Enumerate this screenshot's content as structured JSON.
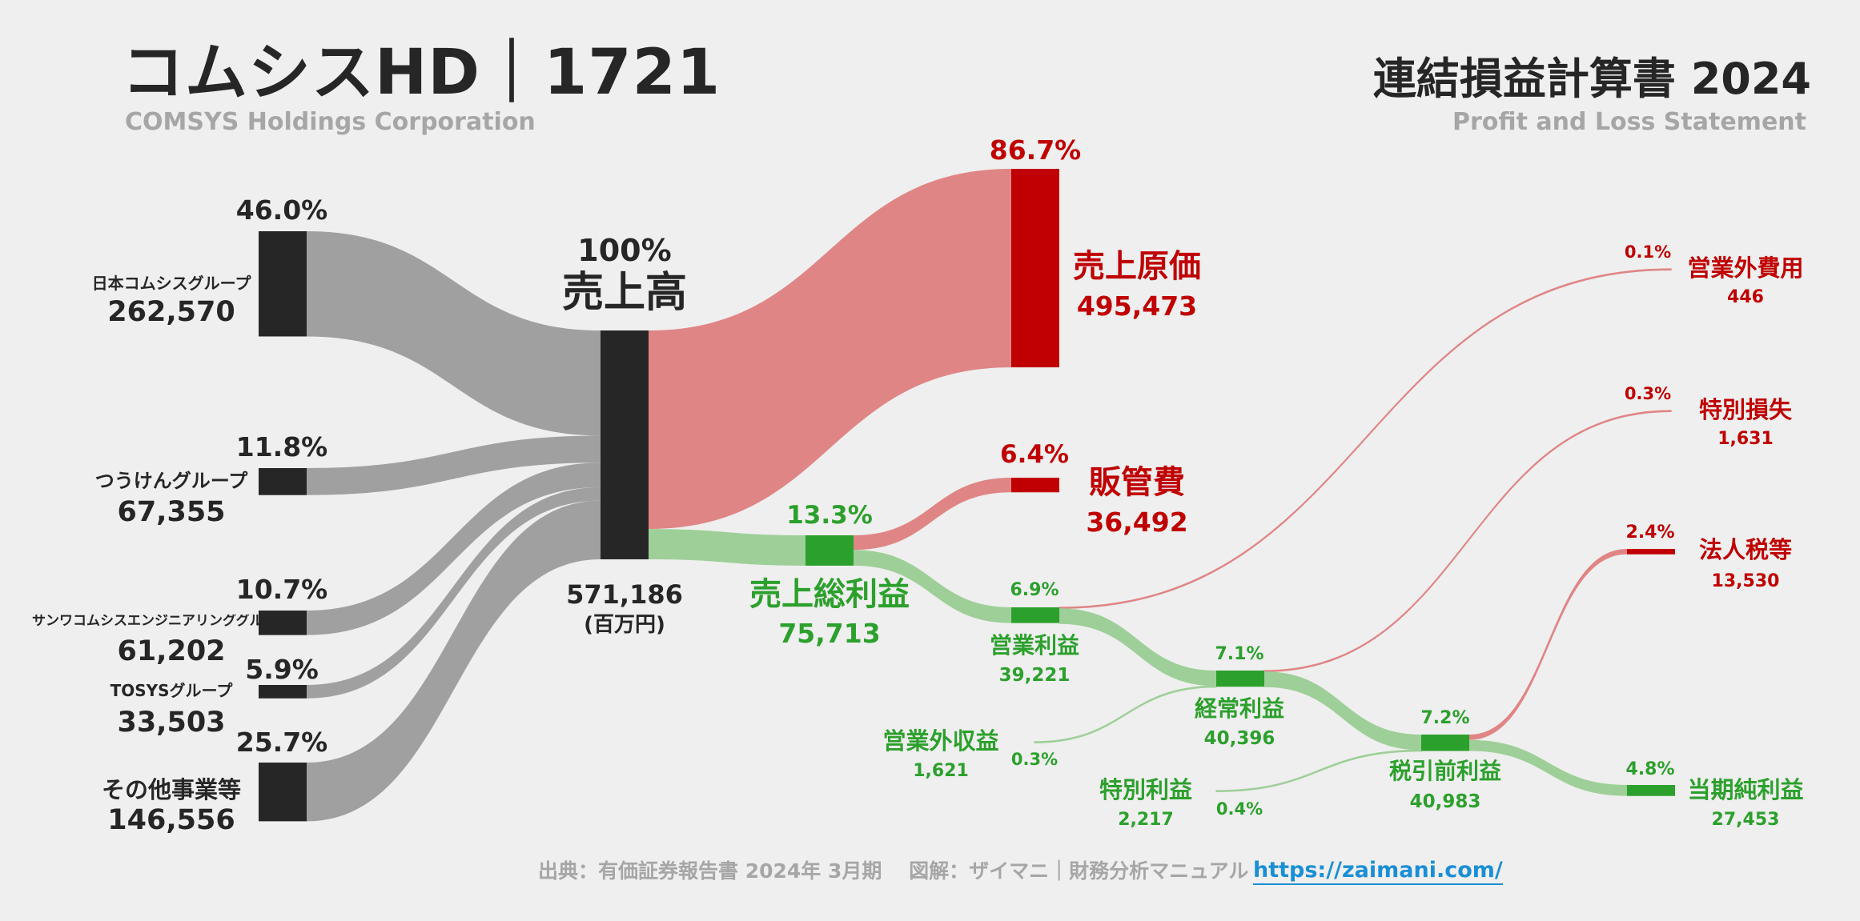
{
  "header": {
    "company": "コムシスHD｜1721",
    "company_en": "COMSYS Holdings Corporation",
    "statement": "連結損益計算書 2024",
    "statement_en": "Profit and Loss Statement"
  },
  "footer": {
    "source": "出典：有価証券報告書 2024年 3月期　 図解：ザイマニ｜財務分析マニュアル",
    "url": "https://zaimani.com/"
  },
  "colors": {
    "dark": "#262626",
    "gray_flow": "#a0a0a0",
    "red": "#c00000",
    "red_flow": "#e08585",
    "green": "#2ca02c",
    "green_flow": "#9ecf98",
    "background": "#efefef"
  },
  "chart_data": {
    "type": "sankey",
    "title": "連結損益計算書 2024",
    "unit": "(百万円)",
    "nodes": [
      {
        "id": "nihon",
        "label": "日本コムシスグループ",
        "value": 262570,
        "display_value": "262,570",
        "pct": "46.0%",
        "color": "dark"
      },
      {
        "id": "tsuken",
        "label": "つうけんグループ",
        "value": 67355,
        "display_value": "67,355",
        "pct": "11.8%",
        "color": "dark"
      },
      {
        "id": "sanwa",
        "label": "サンワコムシスエンジニアリンググループ",
        "value": 61202,
        "display_value": "61,202",
        "pct": "10.7%",
        "color": "dark"
      },
      {
        "id": "tosys",
        "label": "TOSYSグループ",
        "value": 33503,
        "display_value": "33,503",
        "pct": "5.9%",
        "color": "dark"
      },
      {
        "id": "other",
        "label": "その他事業等",
        "value": 146556,
        "display_value": "146,556",
        "pct": "25.7%",
        "color": "dark"
      },
      {
        "id": "revenue",
        "label": "売上高",
        "value": 571186,
        "display_value": "571,186",
        "pct": "100%",
        "color": "dark"
      },
      {
        "id": "cogs",
        "label": "売上原価",
        "value": 495473,
        "display_value": "495,473",
        "pct": "86.7%",
        "color": "red"
      },
      {
        "id": "gross",
        "label": "売上総利益",
        "value": 75713,
        "display_value": "75,713",
        "pct": "13.3%",
        "color": "green"
      },
      {
        "id": "sga",
        "label": "販管費",
        "value": 36492,
        "display_value": "36,492",
        "pct": "6.4%",
        "color": "red"
      },
      {
        "id": "op",
        "label": "営業利益",
        "value": 39221,
        "display_value": "39,221",
        "pct": "6.9%",
        "color": "green"
      },
      {
        "id": "nonop_exp",
        "label": "営業外費用",
        "value": 446,
        "display_value": "446",
        "pct": "0.1%",
        "color": "red"
      },
      {
        "id": "nonop_inc",
        "label": "営業外収益",
        "value": 1621,
        "display_value": "1,621",
        "pct": "0.3%",
        "color": "green"
      },
      {
        "id": "ordinary",
        "label": "経常利益",
        "value": 40396,
        "display_value": "40,396",
        "pct": "7.1%",
        "color": "green"
      },
      {
        "id": "sp_loss",
        "label": "特別損失",
        "value": 1631,
        "display_value": "1,631",
        "pct": "0.3%",
        "color": "red"
      },
      {
        "id": "sp_gain",
        "label": "特別利益",
        "value": 2217,
        "display_value": "2,217",
        "pct": "0.4%",
        "color": "green"
      },
      {
        "id": "pretax",
        "label": "税引前利益",
        "value": 40983,
        "display_value": "40,983",
        "pct": "7.2%",
        "color": "green"
      },
      {
        "id": "tax",
        "label": "法人税等",
        "value": 13530,
        "display_value": "13,530",
        "pct": "2.4%",
        "color": "red"
      },
      {
        "id": "net",
        "label": "当期純利益",
        "value": 27453,
        "display_value": "27,453",
        "pct": "4.8%",
        "color": "green"
      }
    ],
    "links": [
      {
        "source": "nihon",
        "target": "revenue",
        "value": 262570
      },
      {
        "source": "tsuken",
        "target": "revenue",
        "value": 67355
      },
      {
        "source": "sanwa",
        "target": "revenue",
        "value": 61202
      },
      {
        "source": "tosys",
        "target": "revenue",
        "value": 33503
      },
      {
        "source": "other",
        "target": "revenue",
        "value": 146556
      },
      {
        "source": "revenue",
        "target": "cogs",
        "value": 495473
      },
      {
        "source": "revenue",
        "target": "gross",
        "value": 75713
      },
      {
        "source": "gross",
        "target": "sga",
        "value": 36492
      },
      {
        "source": "gross",
        "target": "op",
        "value": 39221
      },
      {
        "source": "op",
        "target": "nonop_exp",
        "value": 446
      },
      {
        "source": "op",
        "target": "ordinary",
        "value": 38775
      },
      {
        "source": "nonop_inc",
        "target": "ordinary",
        "value": 1621
      },
      {
        "source": "ordinary",
        "target": "sp_loss",
        "value": 1631
      },
      {
        "source": "ordinary",
        "target": "pretax",
        "value": 38765
      },
      {
        "source": "sp_gain",
        "target": "pretax",
        "value": 2217
      },
      {
        "source": "pretax",
        "target": "tax",
        "value": 13530
      },
      {
        "source": "pretax",
        "target": "net",
        "value": 27453
      }
    ]
  }
}
